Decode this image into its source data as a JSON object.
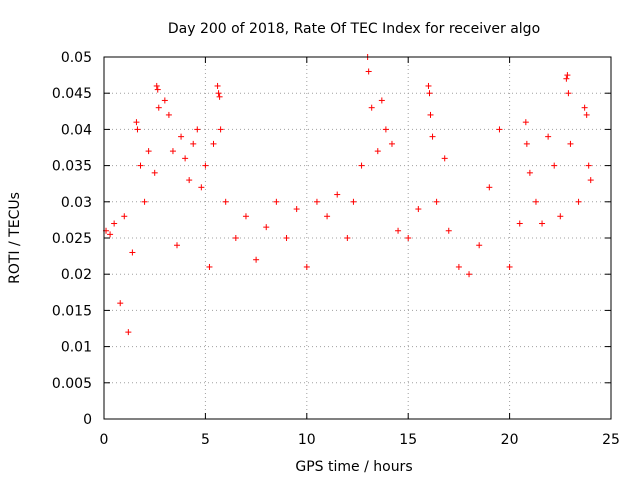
{
  "chart_data": {
    "type": "scatter",
    "title": "Day 200 of 2018, Rate Of TEC Index for receiver algo",
    "xlabel": "GPS time / hours",
    "ylabel": "ROTI / TECUs",
    "xlim": [
      0,
      25
    ],
    "ylim": [
      0,
      0.05
    ],
    "xticks": [
      "0",
      "5",
      "10",
      "15",
      "20",
      "25"
    ],
    "yticks": [
      "0",
      "0.005",
      "0.01",
      "0.015",
      "0.02",
      "0.025",
      "0.03",
      "0.035",
      "0.04",
      "0.045",
      "0.05"
    ],
    "grid": true,
    "marker": "plus",
    "color": "#ff0000",
    "series": [
      {
        "points": [
          [
            0.1,
            0.026
          ],
          [
            0.3,
            0.0255
          ],
          [
            0.5,
            0.027
          ],
          [
            0.8,
            0.016
          ],
          [
            1.0,
            0.028
          ],
          [
            1.2,
            0.012
          ],
          [
            1.4,
            0.023
          ],
          [
            1.6,
            0.041
          ],
          [
            1.65,
            0.04
          ],
          [
            1.8,
            0.035
          ],
          [
            2.0,
            0.03
          ],
          [
            2.2,
            0.037
          ],
          [
            2.5,
            0.034
          ],
          [
            2.6,
            0.046
          ],
          [
            2.65,
            0.0455
          ],
          [
            2.7,
            0.043
          ],
          [
            3.0,
            0.044
          ],
          [
            3.2,
            0.042
          ],
          [
            3.4,
            0.037
          ],
          [
            3.6,
            0.024
          ],
          [
            3.8,
            0.039
          ],
          [
            4.0,
            0.036
          ],
          [
            4.2,
            0.033
          ],
          [
            4.4,
            0.038
          ],
          [
            4.6,
            0.04
          ],
          [
            4.8,
            0.032
          ],
          [
            5.0,
            0.035
          ],
          [
            5.2,
            0.021
          ],
          [
            5.4,
            0.038
          ],
          [
            5.6,
            0.046
          ],
          [
            5.65,
            0.045
          ],
          [
            5.7,
            0.0445
          ],
          [
            5.75,
            0.04
          ],
          [
            6.0,
            0.03
          ],
          [
            6.5,
            0.025
          ],
          [
            7.0,
            0.028
          ],
          [
            7.5,
            0.022
          ],
          [
            8.0,
            0.0265
          ],
          [
            8.5,
            0.03
          ],
          [
            9.0,
            0.025
          ],
          [
            9.5,
            0.029
          ],
          [
            10.0,
            0.021
          ],
          [
            10.5,
            0.03
          ],
          [
            11.0,
            0.028
          ],
          [
            11.5,
            0.031
          ],
          [
            12.0,
            0.025
          ],
          [
            12.3,
            0.03
          ],
          [
            12.7,
            0.035
          ],
          [
            13.0,
            0.05
          ],
          [
            13.05,
            0.048
          ],
          [
            13.2,
            0.043
          ],
          [
            13.5,
            0.037
          ],
          [
            13.7,
            0.044
          ],
          [
            13.9,
            0.04
          ],
          [
            14.2,
            0.038
          ],
          [
            14.5,
            0.026
          ],
          [
            15.0,
            0.025
          ],
          [
            15.5,
            0.029
          ],
          [
            16.0,
            0.046
          ],
          [
            16.05,
            0.045
          ],
          [
            16.1,
            0.042
          ],
          [
            16.2,
            0.039
          ],
          [
            16.4,
            0.03
          ],
          [
            16.8,
            0.036
          ],
          [
            17.0,
            0.026
          ],
          [
            17.5,
            0.021
          ],
          [
            18.0,
            0.02
          ],
          [
            18.5,
            0.024
          ],
          [
            19.0,
            0.032
          ],
          [
            19.5,
            0.04
          ],
          [
            20.0,
            0.021
          ],
          [
            20.5,
            0.027
          ],
          [
            20.8,
            0.041
          ],
          [
            20.85,
            0.038
          ],
          [
            21.0,
            0.034
          ],
          [
            21.3,
            0.03
          ],
          [
            21.6,
            0.027
          ],
          [
            21.9,
            0.039
          ],
          [
            22.2,
            0.035
          ],
          [
            22.5,
            0.028
          ],
          [
            22.8,
            0.047
          ],
          [
            22.85,
            0.0475
          ],
          [
            22.9,
            0.045
          ],
          [
            23.0,
            0.038
          ],
          [
            23.4,
            0.03
          ],
          [
            23.7,
            0.043
          ],
          [
            23.8,
            0.042
          ],
          [
            23.9,
            0.035
          ],
          [
            24.0,
            0.033
          ]
        ]
      }
    ]
  }
}
